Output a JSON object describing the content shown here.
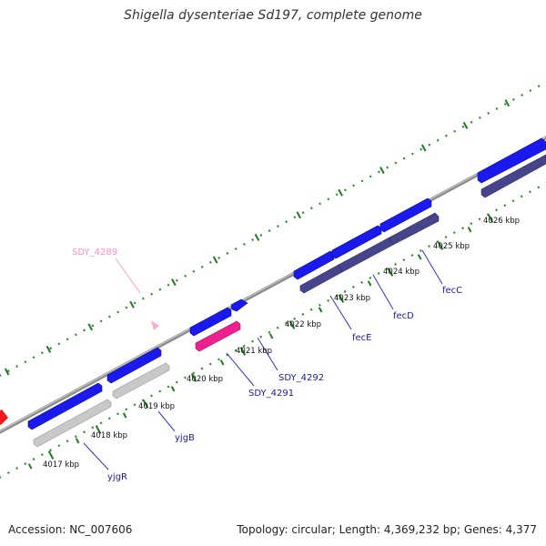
{
  "title": "Shigella dysenteriae Sd197, complete genome",
  "footer": {
    "accession": "Accession: NC_007606",
    "summary": "Topology: circular; Length: 4,369,232 bp; Genes: 4,377"
  },
  "colors": {
    "background": "#ffffff",
    "backbone": "#8c8c8c",
    "tick": "#2a8a2a",
    "forward_gene": "#1a1aee",
    "operon_gene": "#48448c",
    "pseudogene": "#c8c8c8",
    "rna_gene": "#ee2090",
    "misc_feature": "#ff9ec8",
    "unknown": "#ff2020",
    "gene_label": "#1a1aaa",
    "misc_label": "#ff8fc0"
  },
  "scale": {
    "unit": "kbp",
    "ticks": [
      "4017 kbp",
      "4018 kbp",
      "4019 kbp",
      "4020 kbp",
      "4021 kbp",
      "4022 kbp",
      "4023 kbp",
      "4024 kbp",
      "4025 kbp",
      "4026 kbp"
    ]
  },
  "gene_labels": [
    "yjgR",
    "yjgB",
    "SDY_4291",
    "SDY_4292",
    "fecE",
    "fecD",
    "fecC"
  ],
  "misc_labels": [
    "SDY_4289"
  ]
}
